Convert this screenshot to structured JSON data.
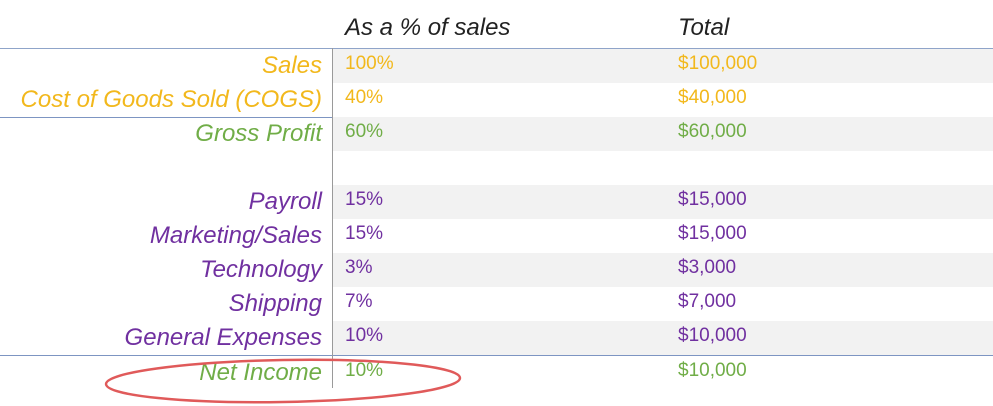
{
  "header": {
    "pct_label": "As a % of sales",
    "total_label": "Total"
  },
  "rows": [
    {
      "label": "Sales",
      "pct": "100%",
      "total": "$100,000"
    },
    {
      "label": "Cost of Goods Sold (COGS)",
      "pct": "40%",
      "total": "$40,000"
    },
    {
      "label": "Gross Profit",
      "pct": "60%",
      "total": "$60,000"
    },
    {
      "label": "",
      "pct": "",
      "total": ""
    },
    {
      "label": "Payroll",
      "pct": "15%",
      "total": "$15,000"
    },
    {
      "label": "Marketing/Sales",
      "pct": "15%",
      "total": "$15,000"
    },
    {
      "label": "Technology",
      "pct": "3%",
      "total": "$3,000"
    },
    {
      "label": "Shipping",
      "pct": "7%",
      "total": "$7,000"
    },
    {
      "label": "General Expenses",
      "pct": "10%",
      "total": "$10,000"
    },
    {
      "label": "Net Income",
      "pct": "10%",
      "total": "$10,000"
    }
  ],
  "colors": {
    "revenue": "#f2b81c",
    "profit": "#70ad47",
    "expense": "#7030a0",
    "highlight_circle": "#e05a5a"
  }
}
